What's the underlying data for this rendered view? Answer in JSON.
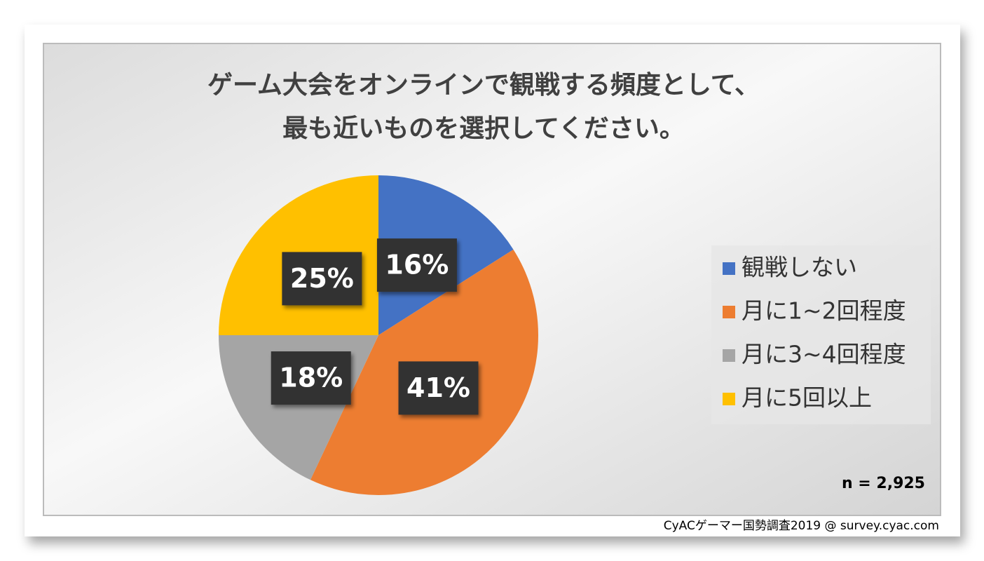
{
  "chart_data": {
    "type": "pie",
    "title": [
      "ゲーム大会をオンラインで観戦する頻度として、",
      "最も近いものを選択してください。"
    ],
    "categories": [
      "観戦しない",
      "月に1~2回程度",
      "月に3~4回程度",
      "月に5回以上"
    ],
    "values": [
      16,
      41,
      18,
      25
    ],
    "value_labels": [
      "16%",
      "41%",
      "18%",
      "25%"
    ],
    "colors": [
      "#4472c4",
      "#ed7d31",
      "#a5a5a5",
      "#ffc000"
    ],
    "legend": "right",
    "annotation": "n = 2,925",
    "source": "CyACゲーマー国勢調査2019 @ survey.cyac.com"
  }
}
